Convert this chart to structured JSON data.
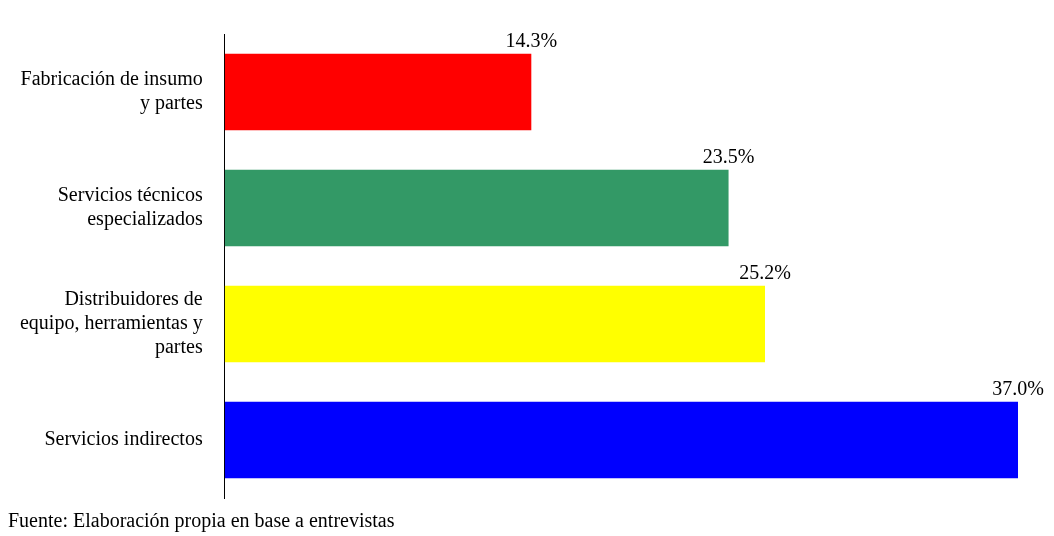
{
  "chart_data": {
    "type": "bar",
    "orientation": "horizontal",
    "categories": [
      "Fabricación de insumo y partes",
      "Servicios técnicos especializados",
      "Distribuidores de equipo, herramientas y partes",
      "Servicios indirectos"
    ],
    "values": [
      14.3,
      23.5,
      25.2,
      37.0
    ],
    "colors": [
      "#ff0000",
      "#339966",
      "#ffff00",
      "#0000ff"
    ],
    "value_labels": [
      "14.3%",
      "23.5%",
      "25.2%",
      "37.0%"
    ],
    "xlim": [
      0,
      37
    ],
    "tick_labels": "y",
    "legend": false,
    "annotations": [
      "Fuente: Elaboración propia en base a entrevistas"
    ]
  }
}
